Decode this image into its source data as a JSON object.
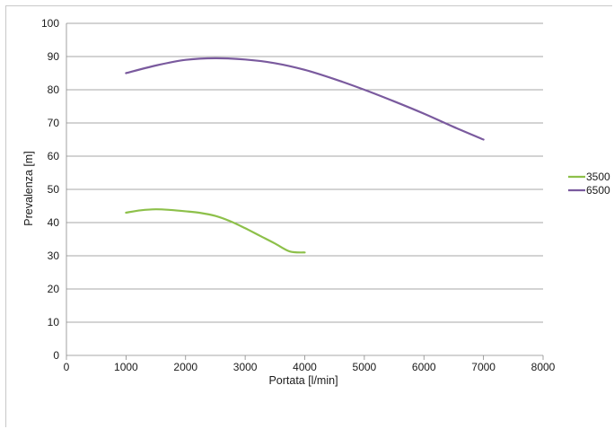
{
  "chart_data": {
    "type": "line",
    "title": "",
    "xlabel": "Portata [l/min]",
    "ylabel": "Prevalenza [m]",
    "xlim": [
      0,
      8000
    ],
    "ylim": [
      0,
      100
    ],
    "xticks": [
      "0",
      "1000",
      "2000",
      "3000",
      "4000",
      "5000",
      "6000",
      "7000",
      "8000"
    ],
    "yticks": [
      "0",
      "10",
      "20",
      "30",
      "40",
      "50",
      "60",
      "70",
      "80",
      "90",
      "100"
    ],
    "grid": "horizontal",
    "legend": "right",
    "series": [
      {
        "name": "3500",
        "color": "#8dc04a",
        "x": [
          1000,
          1250,
          1500,
          1750,
          2000,
          2250,
          2500,
          2750,
          3000,
          3250,
          3500,
          3750,
          4000
        ],
        "y": [
          43.0,
          43.7,
          44.0,
          43.8,
          43.4,
          42.9,
          42.0,
          40.4,
          38.3,
          36.0,
          33.7,
          31.3,
          31.0
        ]
      },
      {
        "name": "6500",
        "color": "#7a5a9e",
        "x": [
          1000,
          1500,
          2000,
          2500,
          3000,
          3500,
          4000,
          4500,
          5000,
          5500,
          6000,
          6500,
          7000
        ],
        "y": [
          85.0,
          87.3,
          89.0,
          89.5,
          89.1,
          88.0,
          86.0,
          83.2,
          80.0,
          76.5,
          72.8,
          68.8,
          65.0
        ]
      }
    ]
  }
}
